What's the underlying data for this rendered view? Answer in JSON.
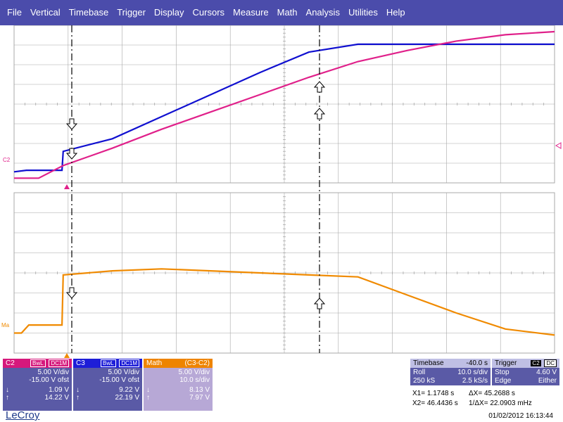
{
  "menu": [
    "File",
    "Vertical",
    "Timebase",
    "Trigger",
    "Display",
    "Cursors",
    "Measure",
    "Math",
    "Analysis",
    "Utilities",
    "Help"
  ],
  "colors": {
    "c2": "#e0208a",
    "c3": "#1010d0",
    "math": "#f08a00",
    "grid": "#a8a8a8",
    "menubar": "#4b4cab"
  },
  "traces": {
    "c2_label": "C2",
    "math_label": "Ma",
    "c2_points": [
      [
        0.0,
        0.3
      ],
      [
        10.0,
        0.3
      ],
      [
        15.0,
        0.7
      ],
      [
        20.0,
        1.1
      ],
      [
        40.0,
        2.2
      ],
      [
        60.0,
        3.4
      ],
      [
        80.0,
        4.5
      ],
      [
        100.0,
        5.6
      ],
      [
        120.0,
        6.7
      ],
      [
        140.0,
        7.7
      ],
      [
        160.0,
        8.4
      ],
      [
        180.0,
        9.0
      ],
      [
        200.0,
        9.4
      ],
      [
        220.0,
        9.6
      ]
    ],
    "c3_points": [
      [
        0.0,
        0.7
      ],
      [
        5.0,
        0.8
      ],
      [
        19.5,
        0.8
      ],
      [
        20.0,
        2.0
      ],
      [
        40.0,
        2.8
      ],
      [
        60.0,
        4.2
      ],
      [
        80.0,
        5.6
      ],
      [
        100.0,
        7.0
      ],
      [
        120.0,
        8.3
      ],
      [
        140.0,
        8.8
      ],
      [
        220.0,
        8.8
      ]
    ],
    "math_points": [
      [
        0.0,
        0.5
      ],
      [
        3.0,
        0.5
      ],
      [
        6.0,
        0.7
      ],
      [
        19.5,
        0.7
      ],
      [
        20.0,
        1.95
      ],
      [
        40.0,
        2.05
      ],
      [
        60.0,
        2.1
      ],
      [
        80.0,
        2.05
      ],
      [
        100.0,
        2.0
      ],
      [
        120.0,
        1.95
      ],
      [
        140.0,
        1.9
      ],
      [
        160.0,
        1.45
      ],
      [
        180.0,
        1.0
      ],
      [
        200.0,
        0.6
      ],
      [
        220.0,
        0.45
      ]
    ]
  },
  "panels": {
    "c2": {
      "title": "C2",
      "badge1": "BwL",
      "badge2": "DC1M",
      "vdiv": "5.00 V/div",
      "ofst": "-15.00 V ofst",
      "low": "1.09 V",
      "high": "14.22 V"
    },
    "c3": {
      "title": "C3",
      "badge1": "BwL",
      "badge2": "DC1M",
      "vdiv": "5.00 V/div",
      "ofst": "-15.00 V ofst",
      "low": "9.22 V",
      "high": "22.19 V"
    },
    "math": {
      "title": "Math",
      "expr": "(C3-C2)",
      "vdiv": "5.00 V/div",
      "tdiv": "10.0 s/div",
      "low": "8.13 V",
      "high": "7.97 V"
    },
    "timebase": {
      "title": "Timebase",
      "value": "-40.0 s",
      "mode": "Roll",
      "sdiv": "10.0 s/div",
      "samples": "250 kS",
      "rate": "2.5 kS/s"
    },
    "trigger": {
      "title": "Trigger",
      "ch": "C2",
      "coupling": "DC",
      "mode": "Stop",
      "level": "4.60 V",
      "type": "Edge",
      "slope": "Either"
    }
  },
  "cursors": {
    "x1_label": "X1=",
    "x1": "1.1748 s",
    "dx_label": "ΔX=",
    "dx": "45.2688 s",
    "x2_label": "X2=",
    "x2": "46.4436 s",
    "inv_label": "1/ΔX=",
    "inv": "22.0903 mHz"
  },
  "logo": "LeCroy",
  "timestamp": "01/02/2012 16:13:44"
}
